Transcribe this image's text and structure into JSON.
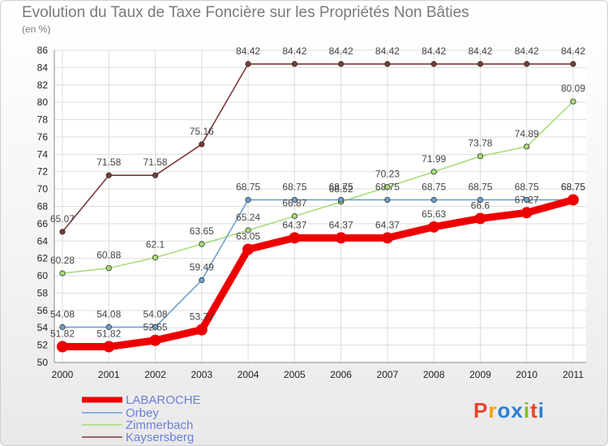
{
  "header": {
    "title": "Evolution du Taux de Taxe Foncière sur les Propriétés Non Bâties",
    "unit": "(en %)"
  },
  "logo": {
    "letters": [
      "P",
      "r",
      "o",
      "x",
      "i",
      "t",
      "i"
    ],
    "colors": [
      "#e8442c",
      "#f5a10a",
      "#2a7fd4",
      "#2a7fd4",
      "#7cbf2a",
      "#e8442c",
      "#2a7fd4"
    ]
  },
  "chart_data": {
    "type": "line",
    "title": "Evolution du Taux de Taxe Foncière sur les Propriétés Non Bâties",
    "ylabel": "(en %)",
    "xlabel": "",
    "categories": [
      "2000",
      "2001",
      "2002",
      "2003",
      "2004",
      "2005",
      "2006",
      "2007",
      "2008",
      "2009",
      "2010",
      "2011"
    ],
    "ylim": [
      50,
      86
    ],
    "yticks": [
      50,
      52,
      54,
      56,
      58,
      60,
      62,
      64,
      66,
      68,
      70,
      72,
      74,
      76,
      78,
      80,
      82,
      84,
      86
    ],
    "grid": true,
    "series": [
      {
        "name": "LABAROCHE",
        "color": "#ee0000",
        "values": [
          51.82,
          51.82,
          52.55,
          53.77,
          63.05,
          64.37,
          64.37,
          64.37,
          65.63,
          66.6,
          67.27,
          68.75
        ],
        "labels": [
          "51.82",
          "51.82",
          "52.55",
          "53.77",
          "63.05",
          "64.37",
          "64.37",
          "64.37",
          "65.63",
          "66.6",
          "67.27",
          "68.75"
        ]
      },
      {
        "name": "Orbey",
        "color": "#6f9fcf",
        "values": [
          54.08,
          54.08,
          54.08,
          59.49,
          68.75,
          68.75,
          68.75,
          68.75,
          68.75,
          68.75,
          68.75,
          68.75
        ],
        "labels": [
          "54.08",
          "54.08",
          "54.08",
          "59.49",
          "68.75",
          "68.75",
          "68.75",
          "68.75",
          "68.75",
          "68.75",
          "68.75",
          "68.75"
        ]
      },
      {
        "name": "Zimmerbach",
        "color": "#a6dd7a",
        "values": [
          60.28,
          60.88,
          62.1,
          63.65,
          65.24,
          66.87,
          68.52,
          70.23,
          71.99,
          73.78,
          74.89,
          80.09
        ],
        "labels": [
          "60.28",
          "60.88",
          "62.1",
          "63.65",
          "65.24",
          "66.87",
          "68.52",
          "70.23",
          "71.99",
          "73.78",
          "74.89",
          "80.09"
        ]
      },
      {
        "name": "Kaysersberg",
        "color": "#7a3a3a",
        "values": [
          65.07,
          71.58,
          71.58,
          75.16,
          84.42,
          84.42,
          84.42,
          84.42,
          84.42,
          84.42,
          84.42,
          84.42
        ],
        "labels": [
          "65.07",
          "71.58",
          "71.58",
          "75.16",
          "84.42",
          "84.42",
          "84.42",
          "84.42",
          "84.42",
          "84.42",
          "84.42",
          "84.42"
        ]
      }
    ]
  }
}
